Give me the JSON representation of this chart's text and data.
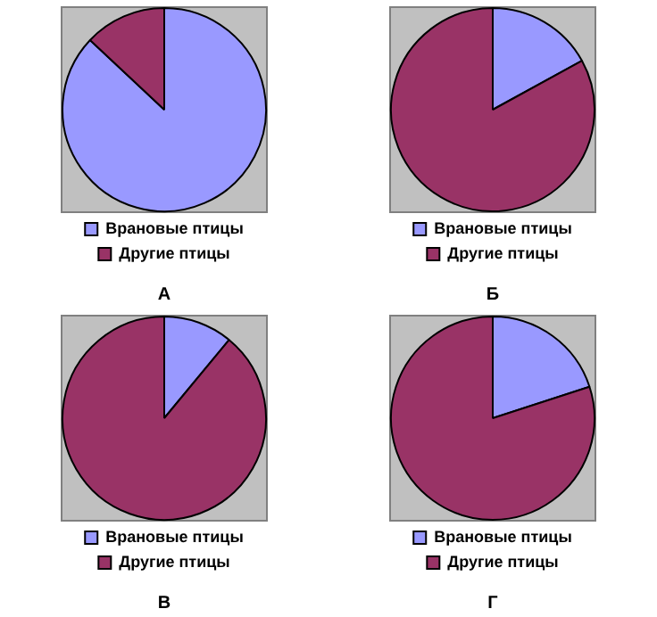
{
  "chart_data": [
    {
      "type": "pie",
      "title": "А",
      "categories": [
        "Врановые птицы",
        "Другие птицы"
      ],
      "values": [
        87,
        13
      ],
      "colors": [
        "#9999ff",
        "#993366"
      ],
      "legend": "bottom"
    },
    {
      "type": "pie",
      "title": "Б",
      "categories": [
        "Врановые птицы",
        "Другие птицы"
      ],
      "values": [
        17,
        83
      ],
      "colors": [
        "#9999ff",
        "#993366"
      ],
      "legend": "bottom"
    },
    {
      "type": "pie",
      "title": "В",
      "categories": [
        "Врановые птицы",
        "Другие птицы"
      ],
      "values": [
        11,
        89
      ],
      "colors": [
        "#9999ff",
        "#993366"
      ],
      "legend": "bottom"
    },
    {
      "type": "pie",
      "title": "Г",
      "categories": [
        "Врановые птицы",
        "Другие птицы"
      ],
      "values": [
        20,
        80
      ],
      "colors": [
        "#9999ff",
        "#993366"
      ],
      "legend": "bottom"
    }
  ]
}
